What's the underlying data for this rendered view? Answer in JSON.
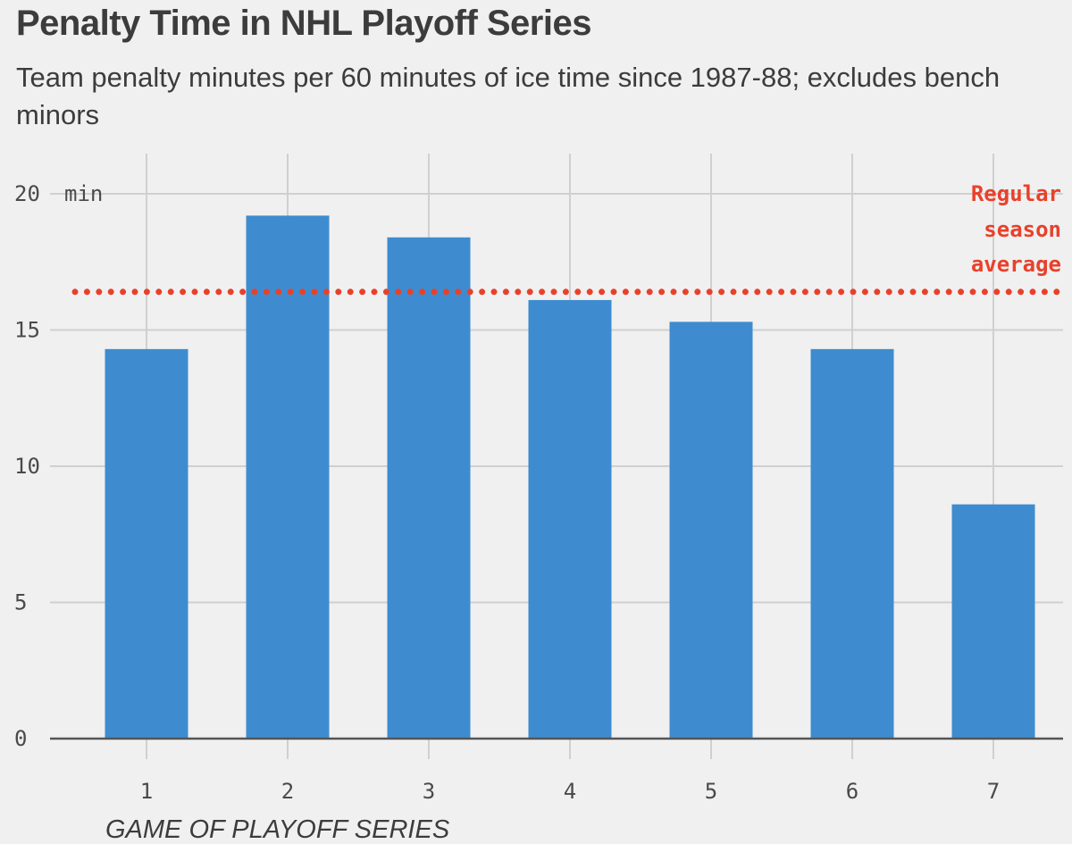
{
  "title": "Penalty Time in NHL Playoff Series",
  "subtitle": "Team penalty minutes per 60 minutes of ice time since 1987-88; excludes bench minors",
  "colors": {
    "bar": "#3e8ccf",
    "reference_line": "#e8412b",
    "grid": "#d0d0d0",
    "axis": "#555555",
    "background": "#f0f0f0"
  },
  "chart_data": {
    "type": "bar",
    "title": "Penalty Time in NHL Playoff Series",
    "subtitle": "Team penalty minutes per 60 minutes of ice time since 1987-88; excludes bench minors",
    "xlabel": "GAME OF PLAYOFF SERIES",
    "ylabel": "",
    "categories": [
      "1",
      "2",
      "3",
      "4",
      "5",
      "6",
      "7"
    ],
    "values": [
      14.3,
      19.2,
      18.4,
      16.1,
      15.3,
      14.3,
      8.6
    ],
    "ylim": [
      0,
      20
    ],
    "yticks": [
      0,
      5,
      10,
      15,
      20
    ],
    "ytick_labels": [
      "0",
      "5",
      "10",
      "15",
      "20"
    ],
    "y_unit_label": "min",
    "grid": true,
    "reference_line": {
      "value": 16.4,
      "style": "dotted",
      "label_lines": [
        "Regular",
        "season",
        "average"
      ]
    }
  }
}
